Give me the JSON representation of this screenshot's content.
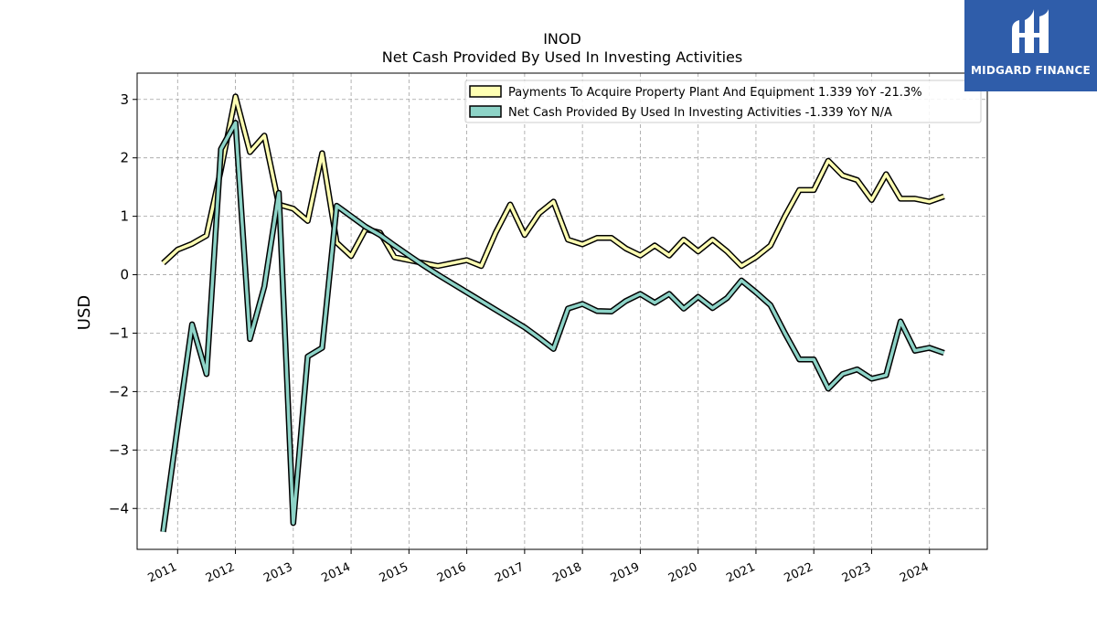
{
  "logo": {
    "text": "MIDGARD FINANCE",
    "icon": "midgard-logo-icon",
    "bg": "#2f5daa"
  },
  "chart_data": {
    "type": "line",
    "title": "INOD",
    "subtitle": "Net Cash Provided By Used In Investing Activities",
    "xlabel": "",
    "ylabel": "USD",
    "xlim": [
      2010.3,
      2025.0
    ],
    "ylim": [
      -4.7,
      3.45
    ],
    "yticks": [
      3,
      2,
      1,
      0,
      -1,
      -2,
      -3,
      -4
    ],
    "ytick_labels": [
      "3",
      "2",
      "1",
      "0",
      "−1",
      "−2",
      "−3",
      "−4"
    ],
    "xticks": [
      2011,
      2012,
      2013,
      2014,
      2015,
      2016,
      2017,
      2018,
      2019,
      2020,
      2021,
      2022,
      2023,
      2024
    ],
    "xtick_labels": [
      "2011",
      "2012",
      "2013",
      "2014",
      "2015",
      "2016",
      "2017",
      "2018",
      "2019",
      "2020",
      "2021",
      "2022",
      "2023",
      "2024"
    ],
    "grid": true,
    "legend": "top-right",
    "series": [
      {
        "name": "Payments To Acquire Property Plant And Equipment  1.339 YoY -21.3%",
        "color": "#ffffb3",
        "x": [
          2010.75,
          2011.0,
          2011.25,
          2011.5,
          2011.75,
          2012.0,
          2012.25,
          2012.5,
          2012.75,
          2013.0,
          2013.25,
          2013.5,
          2013.75,
          2014.0,
          2014.25,
          2014.5,
          2014.75,
          2015.0,
          2015.25,
          2015.5,
          2015.75,
          2016.0,
          2016.25,
          2016.5,
          2016.75,
          2017.0,
          2017.25,
          2017.5,
          2017.75,
          2018.0,
          2018.25,
          2018.5,
          2018.75,
          2019.0,
          2019.25,
          2019.5,
          2019.75,
          2020.0,
          2020.25,
          2020.5,
          2020.75,
          2021.0,
          2021.25,
          2021.5,
          2021.75,
          2022.0,
          2022.25,
          2022.5,
          2022.75,
          2023.0,
          2023.25,
          2023.5,
          2023.75,
          2024.0,
          2024.25
        ],
        "values": [
          0.2,
          0.43,
          0.53,
          0.67,
          1.8,
          3.05,
          2.1,
          2.38,
          1.2,
          1.13,
          0.92,
          2.08,
          0.55,
          0.32,
          0.78,
          0.72,
          0.3,
          0.25,
          0.2,
          0.15,
          0.2,
          0.25,
          0.15,
          0.72,
          1.2,
          0.68,
          1.05,
          1.25,
          0.6,
          0.52,
          0.63,
          0.63,
          0.45,
          0.33,
          0.5,
          0.33,
          0.6,
          0.4,
          0.6,
          0.4,
          0.15,
          0.3,
          0.5,
          1.0,
          1.45,
          1.45,
          1.95,
          1.7,
          1.62,
          1.28,
          1.72,
          1.3,
          1.3,
          1.25,
          1.339
        ]
      },
      {
        "name": "Net Cash Provided By Used In Investing Activities  -1.339 YoY N/A",
        "color": "#8dd3c7",
        "x": [
          2010.75,
          2011.0,
          2011.25,
          2011.5,
          2011.75,
          2012.0,
          2012.25,
          2012.5,
          2012.75,
          2013.0,
          2013.25,
          2013.5,
          2013.75,
          2014.0,
          2014.25,
          2014.5,
          2014.75,
          2015.0,
          2015.25,
          2015.5,
          2015.75,
          2016.0,
          2016.25,
          2016.5,
          2016.75,
          2017.0,
          2017.25,
          2017.5,
          2017.75,
          2018.0,
          2018.25,
          2018.5,
          2018.75,
          2019.0,
          2019.25,
          2019.5,
          2019.75,
          2020.0,
          2020.25,
          2020.5,
          2020.75,
          2021.0,
          2021.25,
          2021.5,
          2021.75,
          2022.0,
          2022.25,
          2022.5,
          2022.75,
          2023.0,
          2023.25,
          2023.5,
          2023.75,
          2024.0,
          2024.25
        ],
        "values": [
          -4.4,
          -2.6,
          -0.85,
          -1.7,
          2.15,
          2.6,
          -1.1,
          -0.2,
          1.4,
          -4.25,
          -1.4,
          -1.25,
          1.18,
          1.0,
          0.82,
          0.68,
          0.5,
          0.33,
          0.16,
          0.0,
          -0.15,
          -0.3,
          -0.45,
          -0.6,
          -0.75,
          -0.9,
          -1.08,
          -1.27,
          -0.58,
          -0.5,
          -0.62,
          -0.63,
          -0.45,
          -0.33,
          -0.48,
          -0.33,
          -0.58,
          -0.38,
          -0.57,
          -0.4,
          -0.1,
          -0.3,
          -0.52,
          -1.0,
          -1.45,
          -1.45,
          -1.95,
          -1.7,
          -1.62,
          -1.78,
          -1.72,
          -0.8,
          -1.3,
          -1.25,
          -1.339
        ]
      }
    ]
  }
}
